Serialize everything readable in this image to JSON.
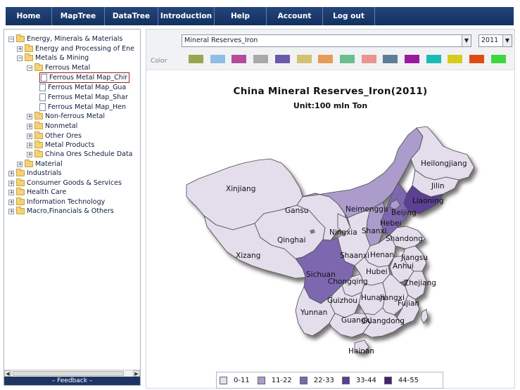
{
  "nav": [
    "Home",
    "MapTree",
    "DataTree",
    "Introduction",
    "Help",
    "Account",
    "Log out"
  ],
  "tree": [
    {
      "label": "Energy, Minerals & Materials",
      "exp": "⊟",
      "icon": "folder"
    },
    {
      "label": "Energy and Processing of Ene",
      "exp": "⊞",
      "icon": "folder"
    },
    {
      "label": "Metals & Mining",
      "exp": "⊟",
      "icon": "folder"
    },
    {
      "label": "Ferrous Metal",
      "exp": "⊟",
      "icon": "folder"
    },
    {
      "label": "Ferrous Metal Map_Chir",
      "exp": "",
      "icon": "page",
      "selected": true
    },
    {
      "label": "Ferrous Metal Map_Gua",
      "exp": "",
      "icon": "page"
    },
    {
      "label": "Ferrous Metal Map_Shar",
      "exp": "",
      "icon": "page"
    },
    {
      "label": "Ferrous Metal Map_Hen",
      "exp": "",
      "icon": "page"
    },
    {
      "label": "Non-ferrous Metal",
      "exp": "⊞",
      "icon": "folder"
    },
    {
      "label": "Nonmetal",
      "exp": "⊞",
      "icon": "folder"
    },
    {
      "label": "Other Ores",
      "exp": "⊞",
      "icon": "folder"
    },
    {
      "label": "Metal Products",
      "exp": "⊞",
      "icon": "folder"
    },
    {
      "label": "China Ores Schedule Data",
      "exp": "⊞",
      "icon": "folder"
    },
    {
      "label": "Material",
      "exp": "⊞",
      "icon": "folder"
    },
    {
      "label": "Industrials",
      "exp": "⊞",
      "icon": "folder"
    },
    {
      "label": "Consumer Goods & Services",
      "exp": "⊞",
      "icon": "folder"
    },
    {
      "label": "Health Care",
      "exp": "⊞",
      "icon": "folder"
    },
    {
      "label": "Information Technology",
      "exp": "⊞",
      "icon": "folder"
    },
    {
      "label": "Macro,Financials & Others",
      "exp": "⊞",
      "icon": "folder"
    }
  ],
  "feedback": "Feedback",
  "indicator_select": "Mineral Reserves_Iron",
  "year_select": "2011",
  "color_label": "Color",
  "color_swatches": [
    "#9aa550",
    "#8ebde7",
    "#b24c9a",
    "#a9a9a9",
    "#6b58a9",
    "#d3c070",
    "#e59c58",
    "#6abd8e",
    "#eb9490",
    "#5e7d96",
    "#9a17a0",
    "#18bcb4",
    "#d6cc19",
    "#e04b15",
    "#3ed63e"
  ],
  "map": {
    "title": "China   Mineral Reserves_Iron(2011)",
    "unit": "Unit:100 mln  Ton",
    "provinces": [
      "Heilongjiang",
      "Jilin",
      "Liaoning",
      "Xinjiang",
      "Neimenggu",
      "Beijing",
      "Hebei",
      "Gansu",
      "Ningxia",
      "Shanxi",
      "Shandong",
      "Qinghai",
      "Xizang",
      "Shaanxi",
      "Henan",
      "Jiangsu",
      "Anhui",
      "Sichuan",
      "Chongqing",
      "Hubei",
      "Zhejiang",
      "Hunan",
      "Jiangxi",
      "Guizhou",
      "Fujian",
      "Yunnan",
      "Guangxi",
      "Guangdong",
      "Hainan"
    ]
  },
  "legend": [
    {
      "label": "0-11",
      "color": "#e3ddec"
    },
    {
      "label": "11-22",
      "color": "#ab9ccb"
    },
    {
      "label": "22-33",
      "color": "#7d67b0"
    },
    {
      "label": "33-44",
      "color": "#5b3f94"
    },
    {
      "label": "44-55",
      "color": "#40256f"
    }
  ]
}
